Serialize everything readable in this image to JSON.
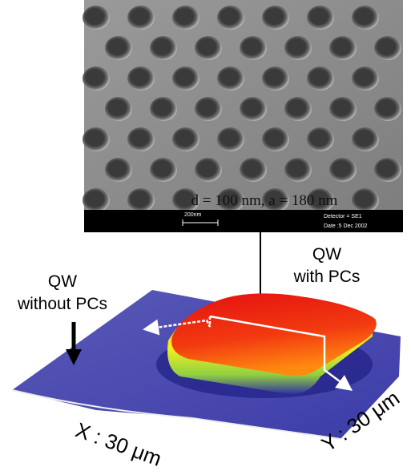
{
  "sem": {
    "caption": "d = 100 nm, a = 180 nm",
    "scale_bar": "200nm",
    "detector": "Detector = SE1",
    "date": "Date :5 Dec 2002"
  },
  "labels": {
    "qw_with_pcs": [
      "QW",
      "with PCs"
    ],
    "qw_without_pcs": [
      "QW",
      "without PCs"
    ],
    "x_axis": "X : 30 μm",
    "y_axis": "Y : 30 μm"
  }
}
